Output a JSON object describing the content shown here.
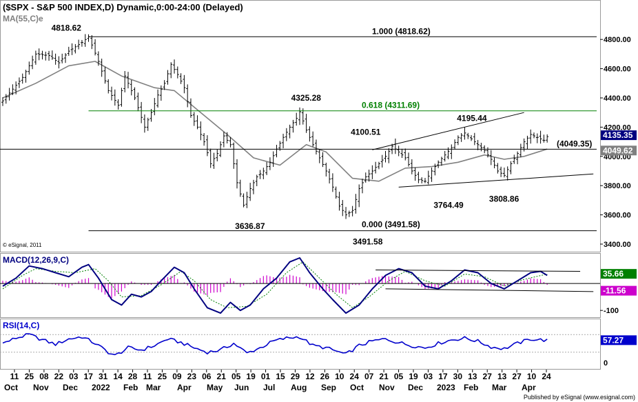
{
  "header": {
    "title": "($SPX - S&P 500 INDEX,D) Dynamic,0:00-24:00 (Delayed)",
    "ma_label": "MA(55,C)",
    "ma_suffix": "e",
    "credit": "© eSignal, 2011",
    "publisher": "Published by eSignal (www.esignal.com)"
  },
  "colors": {
    "price_bar": "#000000",
    "ma": "#808080",
    "fib_top": "#000000",
    "fib_618": "#008000",
    "macd_line": "#000080",
    "signal_line": "#008000",
    "histogram": "#cc00cc",
    "rsi_line": "#0000cc",
    "last_price_bg": "#000080",
    "ma_value_bg": "#808080",
    "macd_tag_bg": "#008000",
    "signal_tag_bg": "#cc00cc",
    "rsi_tag_bg": "#0000cc"
  },
  "chart_data": [
    {
      "type": "candlestick",
      "name": "price",
      "ylim": [
        3400,
        4900
      ],
      "y_ticks": [
        "4800.00",
        "4600.00",
        "4400.00",
        "4200.00",
        "4000.00",
        "3800.00",
        "3600.00",
        "3400.00"
      ],
      "last_price_label": "4135.35",
      "ma_value_label": "4049.62",
      "price_points": [
        {
          "i": 0,
          "v": 4380
        },
        {
          "i": 6,
          "v": 4540
        },
        {
          "i": 10,
          "v": 4700
        },
        {
          "i": 14,
          "v": 4690
        },
        {
          "i": 17,
          "v": 4640
        },
        {
          "i": 20,
          "v": 4720
        },
        {
          "i": 24,
          "v": 4780
        },
        {
          "i": 26,
          "v": 4818
        },
        {
          "i": 29,
          "v": 4650
        },
        {
          "i": 32,
          "v": 4450
        },
        {
          "i": 35,
          "v": 4350
        },
        {
          "i": 37,
          "v": 4550
        },
        {
          "i": 40,
          "v": 4400
        },
        {
          "i": 43,
          "v": 4200
        },
        {
          "i": 45,
          "v": 4300
        },
        {
          "i": 47,
          "v": 4420
        },
        {
          "i": 49,
          "v": 4500
        },
        {
          "i": 51,
          "v": 4630
        },
        {
          "i": 53,
          "v": 4560
        },
        {
          "i": 55,
          "v": 4470
        },
        {
          "i": 57,
          "v": 4280
        },
        {
          "i": 59,
          "v": 4200
        },
        {
          "i": 61,
          "v": 4100
        },
        {
          "i": 63,
          "v": 3950
        },
        {
          "i": 65,
          "v": 4020
        },
        {
          "i": 67,
          "v": 4140
        },
        {
          "i": 69,
          "v": 4080
        },
        {
          "i": 71,
          "v": 3820
        },
        {
          "i": 73,
          "v": 3666
        },
        {
          "i": 75,
          "v": 3780
        },
        {
          "i": 77,
          "v": 3860
        },
        {
          "i": 79,
          "v": 3900
        },
        {
          "i": 81,
          "v": 3960
        },
        {
          "i": 83,
          "v": 4050
        },
        {
          "i": 85,
          "v": 4130
        },
        {
          "i": 87,
          "v": 4200
        },
        {
          "i": 89,
          "v": 4260
        },
        {
          "i": 90,
          "v": 4305
        },
        {
          "i": 92,
          "v": 4180
        },
        {
          "i": 94,
          "v": 4080
        },
        {
          "i": 96,
          "v": 3990
        },
        {
          "i": 98,
          "v": 3900
        },
        {
          "i": 100,
          "v": 3790
        },
        {
          "i": 102,
          "v": 3660
        },
        {
          "i": 104,
          "v": 3600
        },
        {
          "i": 106,
          "v": 3630
        },
        {
          "i": 108,
          "v": 3780
        },
        {
          "i": 110,
          "v": 3860
        },
        {
          "i": 112,
          "v": 3900
        },
        {
          "i": 114,
          "v": 3950
        },
        {
          "i": 116,
          "v": 4000
        },
        {
          "i": 118,
          "v": 4070
        },
        {
          "i": 120,
          "v": 4030
        },
        {
          "i": 122,
          "v": 3990
        },
        {
          "i": 124,
          "v": 3900
        },
        {
          "i": 126,
          "v": 3840
        },
        {
          "i": 128,
          "v": 3830
        },
        {
          "i": 130,
          "v": 3900
        },
        {
          "i": 132,
          "v": 3960
        },
        {
          "i": 134,
          "v": 4010
        },
        {
          "i": 136,
          "v": 4060
        },
        {
          "i": 138,
          "v": 4130
        },
        {
          "i": 140,
          "v": 4160
        },
        {
          "i": 142,
          "v": 4120
        },
        {
          "i": 144,
          "v": 4080
        },
        {
          "i": 146,
          "v": 4040
        },
        {
          "i": 148,
          "v": 3980
        },
        {
          "i": 150,
          "v": 3900
        },
        {
          "i": 152,
          "v": 3870
        },
        {
          "i": 154,
          "v": 3950
        },
        {
          "i": 156,
          "v": 4020
        },
        {
          "i": 158,
          "v": 4100
        },
        {
          "i": 160,
          "v": 4150
        },
        {
          "i": 162,
          "v": 4130
        },
        {
          "i": 164,
          "v": 4110
        },
        {
          "i": 165,
          "v": 4135
        }
      ],
      "ma_points": [
        {
          "i": 0,
          "v": 4400
        },
        {
          "i": 10,
          "v": 4500
        },
        {
          "i": 20,
          "v": 4620
        },
        {
          "i": 28,
          "v": 4650
        },
        {
          "i": 36,
          "v": 4550
        },
        {
          "i": 46,
          "v": 4470
        },
        {
          "i": 52,
          "v": 4450
        },
        {
          "i": 60,
          "v": 4300
        },
        {
          "i": 68,
          "v": 4150
        },
        {
          "i": 76,
          "v": 3990
        },
        {
          "i": 84,
          "v": 3940
        },
        {
          "i": 92,
          "v": 4080
        },
        {
          "i": 98,
          "v": 4030
        },
        {
          "i": 106,
          "v": 3850
        },
        {
          "i": 114,
          "v": 3830
        },
        {
          "i": 122,
          "v": 3920
        },
        {
          "i": 130,
          "v": 3930
        },
        {
          "i": 138,
          "v": 3960
        },
        {
          "i": 146,
          "v": 4010
        },
        {
          "i": 152,
          "v": 3980
        },
        {
          "i": 158,
          "v": 4000
        },
        {
          "i": 165,
          "v": 4050
        }
      ],
      "horizontal_lines": [
        {
          "label": "1.000 (4818.62)",
          "value": 4818.62,
          "role": "fib_top"
        },
        {
          "label": "0.618 (4311.69)",
          "value": 4311.69,
          "role": "fib_618"
        },
        {
          "label": "(4049.35)",
          "value": 4049.35,
          "role": "support"
        },
        {
          "label": "0.000 (3491.58)",
          "value": 3491.58,
          "role": "fib_bottom"
        }
      ],
      "trendlines": [
        {
          "from": {
            "i": 112,
            "v": 4045
          },
          "to": {
            "i": 158,
            "v": 4300
          }
        },
        {
          "from": {
            "i": 120,
            "v": 3790
          },
          "to": {
            "i": 179,
            "v": 3880
          }
        }
      ],
      "annotations": [
        {
          "text": "4818.62",
          "i": 21,
          "v": 4818.62
        },
        {
          "text": "4325.28",
          "i": 92,
          "v": 4325.28
        },
        {
          "text": "4195.44",
          "i": 141,
          "v": 4195.44
        },
        {
          "text": "4100.51",
          "i": 118,
          "v": 4100.51
        },
        {
          "text": "3636.87",
          "i": 75,
          "v": 3636.87
        },
        {
          "text": "3764.49",
          "i": 131,
          "v": 3764.49
        },
        {
          "text": "3808.86",
          "i": 152,
          "v": 3808.86
        },
        {
          "text": "3491.58",
          "i": 109,
          "v": 3491.58
        }
      ]
    },
    {
      "type": "line",
      "name": "MACD",
      "label": "MACD(12,26,9,C)",
      "ylim": [
        -120,
        100
      ],
      "y_ticks": [
        "-100"
      ],
      "macd_value_label": "35.66",
      "signal_value_label": "-11.56",
      "macd_points": [
        {
          "i": 0,
          "v": -10
        },
        {
          "i": 4,
          "v": 20
        },
        {
          "i": 8,
          "v": 65
        },
        {
          "i": 12,
          "v": 55
        },
        {
          "i": 16,
          "v": 40
        },
        {
          "i": 20,
          "v": 25
        },
        {
          "i": 24,
          "v": 60
        },
        {
          "i": 26,
          "v": 70
        },
        {
          "i": 29,
          "v": 20
        },
        {
          "i": 33,
          "v": -60
        },
        {
          "i": 36,
          "v": -80
        },
        {
          "i": 39,
          "v": -40
        },
        {
          "i": 42,
          "v": -50
        },
        {
          "i": 45,
          "v": -30
        },
        {
          "i": 48,
          "v": 10
        },
        {
          "i": 52,
          "v": 60
        },
        {
          "i": 55,
          "v": 40
        },
        {
          "i": 58,
          "v": -20
        },
        {
          "i": 62,
          "v": -90
        },
        {
          "i": 66,
          "v": -110
        },
        {
          "i": 69,
          "v": -70
        },
        {
          "i": 72,
          "v": -100
        },
        {
          "i": 75,
          "v": -80
        },
        {
          "i": 79,
          "v": -20
        },
        {
          "i": 83,
          "v": 20
        },
        {
          "i": 87,
          "v": 80
        },
        {
          "i": 90,
          "v": 95
        },
        {
          "i": 93,
          "v": 40
        },
        {
          "i": 97,
          "v": -20
        },
        {
          "i": 100,
          "v": -60
        },
        {
          "i": 104,
          "v": -110
        },
        {
          "i": 108,
          "v": -80
        },
        {
          "i": 112,
          "v": -20
        },
        {
          "i": 116,
          "v": 30
        },
        {
          "i": 120,
          "v": 55
        },
        {
          "i": 124,
          "v": 40
        },
        {
          "i": 128,
          "v": -10
        },
        {
          "i": 132,
          "v": -20
        },
        {
          "i": 136,
          "v": 10
        },
        {
          "i": 140,
          "v": 50
        },
        {
          "i": 144,
          "v": 40
        },
        {
          "i": 148,
          "v": 0
        },
        {
          "i": 152,
          "v": -20
        },
        {
          "i": 156,
          "v": 10
        },
        {
          "i": 160,
          "v": 40
        },
        {
          "i": 163,
          "v": 45
        },
        {
          "i": 165,
          "v": 30
        }
      ],
      "signal_points": [
        {
          "i": 0,
          "v": -20
        },
        {
          "i": 6,
          "v": 30
        },
        {
          "i": 10,
          "v": 55
        },
        {
          "i": 16,
          "v": 45
        },
        {
          "i": 22,
          "v": 40
        },
        {
          "i": 28,
          "v": 55
        },
        {
          "i": 32,
          "v": 10
        },
        {
          "i": 36,
          "v": -50
        },
        {
          "i": 42,
          "v": -45
        },
        {
          "i": 48,
          "v": -5
        },
        {
          "i": 54,
          "v": 45
        },
        {
          "i": 58,
          "v": 10
        },
        {
          "i": 63,
          "v": -60
        },
        {
          "i": 68,
          "v": -90
        },
        {
          "i": 74,
          "v": -85
        },
        {
          "i": 80,
          "v": -40
        },
        {
          "i": 86,
          "v": 40
        },
        {
          "i": 91,
          "v": 80
        },
        {
          "i": 96,
          "v": 20
        },
        {
          "i": 101,
          "v": -40
        },
        {
          "i": 106,
          "v": -90
        },
        {
          "i": 111,
          "v": -50
        },
        {
          "i": 117,
          "v": 10
        },
        {
          "i": 122,
          "v": 45
        },
        {
          "i": 128,
          "v": 10
        },
        {
          "i": 134,
          "v": -10
        },
        {
          "i": 140,
          "v": 35
        },
        {
          "i": 146,
          "v": 25
        },
        {
          "i": 152,
          "v": -10
        },
        {
          "i": 158,
          "v": 15
        },
        {
          "i": 165,
          "v": 35
        }
      ],
      "trendlines": [
        {
          "from": {
            "i": 113,
            "v": 50
          },
          "to": {
            "i": 175,
            "v": 45
          }
        },
        {
          "from": {
            "i": 116,
            "v": -20
          },
          "to": {
            "i": 179,
            "v": -30
          }
        }
      ]
    },
    {
      "type": "line",
      "name": "RSI",
      "label": "RSI(14,C)",
      "ylim": [
        0,
        100
      ],
      "y_ticks": [
        "0"
      ],
      "rsi_value_label": "57.27",
      "rsi_points": [
        {
          "i": 0,
          "v": 50
        },
        {
          "i": 4,
          "v": 62
        },
        {
          "i": 8,
          "v": 70
        },
        {
          "i": 12,
          "v": 58
        },
        {
          "i": 16,
          "v": 48
        },
        {
          "i": 20,
          "v": 60
        },
        {
          "i": 24,
          "v": 65
        },
        {
          "i": 28,
          "v": 50
        },
        {
          "i": 32,
          "v": 30
        },
        {
          "i": 34,
          "v": 22
        },
        {
          "i": 38,
          "v": 40
        },
        {
          "i": 42,
          "v": 35
        },
        {
          "i": 46,
          "v": 45
        },
        {
          "i": 50,
          "v": 60
        },
        {
          "i": 54,
          "v": 52
        },
        {
          "i": 58,
          "v": 40
        },
        {
          "i": 62,
          "v": 30
        },
        {
          "i": 66,
          "v": 35
        },
        {
          "i": 70,
          "v": 50
        },
        {
          "i": 74,
          "v": 28
        },
        {
          "i": 78,
          "v": 40
        },
        {
          "i": 82,
          "v": 55
        },
        {
          "i": 86,
          "v": 62
        },
        {
          "i": 90,
          "v": 65
        },
        {
          "i": 94,
          "v": 45
        },
        {
          "i": 98,
          "v": 40
        },
        {
          "i": 102,
          "v": 30
        },
        {
          "i": 104,
          "v": 25
        },
        {
          "i": 108,
          "v": 45
        },
        {
          "i": 112,
          "v": 55
        },
        {
          "i": 116,
          "v": 60
        },
        {
          "i": 120,
          "v": 52
        },
        {
          "i": 124,
          "v": 45
        },
        {
          "i": 128,
          "v": 40
        },
        {
          "i": 132,
          "v": 50
        },
        {
          "i": 136,
          "v": 58
        },
        {
          "i": 140,
          "v": 62
        },
        {
          "i": 144,
          "v": 55
        },
        {
          "i": 148,
          "v": 42
        },
        {
          "i": 152,
          "v": 38
        },
        {
          "i": 156,
          "v": 50
        },
        {
          "i": 160,
          "v": 60
        },
        {
          "i": 163,
          "v": 58
        },
        {
          "i": 165,
          "v": 57
        }
      ]
    }
  ],
  "x_axis": {
    "day_ticks": [
      "11",
      "25",
      "08",
      "22",
      "03",
      "17",
      "31",
      "14",
      "28",
      "11",
      "25",
      "09",
      "23",
      "06",
      "21",
      "05",
      "19",
      "01",
      "15",
      "29",
      "12",
      "26",
      "10",
      "24",
      "07",
      "21",
      "05",
      "19",
      "03",
      "17",
      "30",
      "13",
      "27",
      "13",
      "27",
      "10",
      "24"
    ],
    "month_labels": [
      "Oct",
      "Nov",
      "Dec",
      "2022",
      "Feb",
      "Mar",
      "Apr",
      "May",
      "Jun",
      "Jul",
      "Aug",
      "Sep",
      "Oct",
      "Nov",
      "Dec",
      "2023",
      "Feb",
      "Mar",
      "Apr"
    ]
  }
}
